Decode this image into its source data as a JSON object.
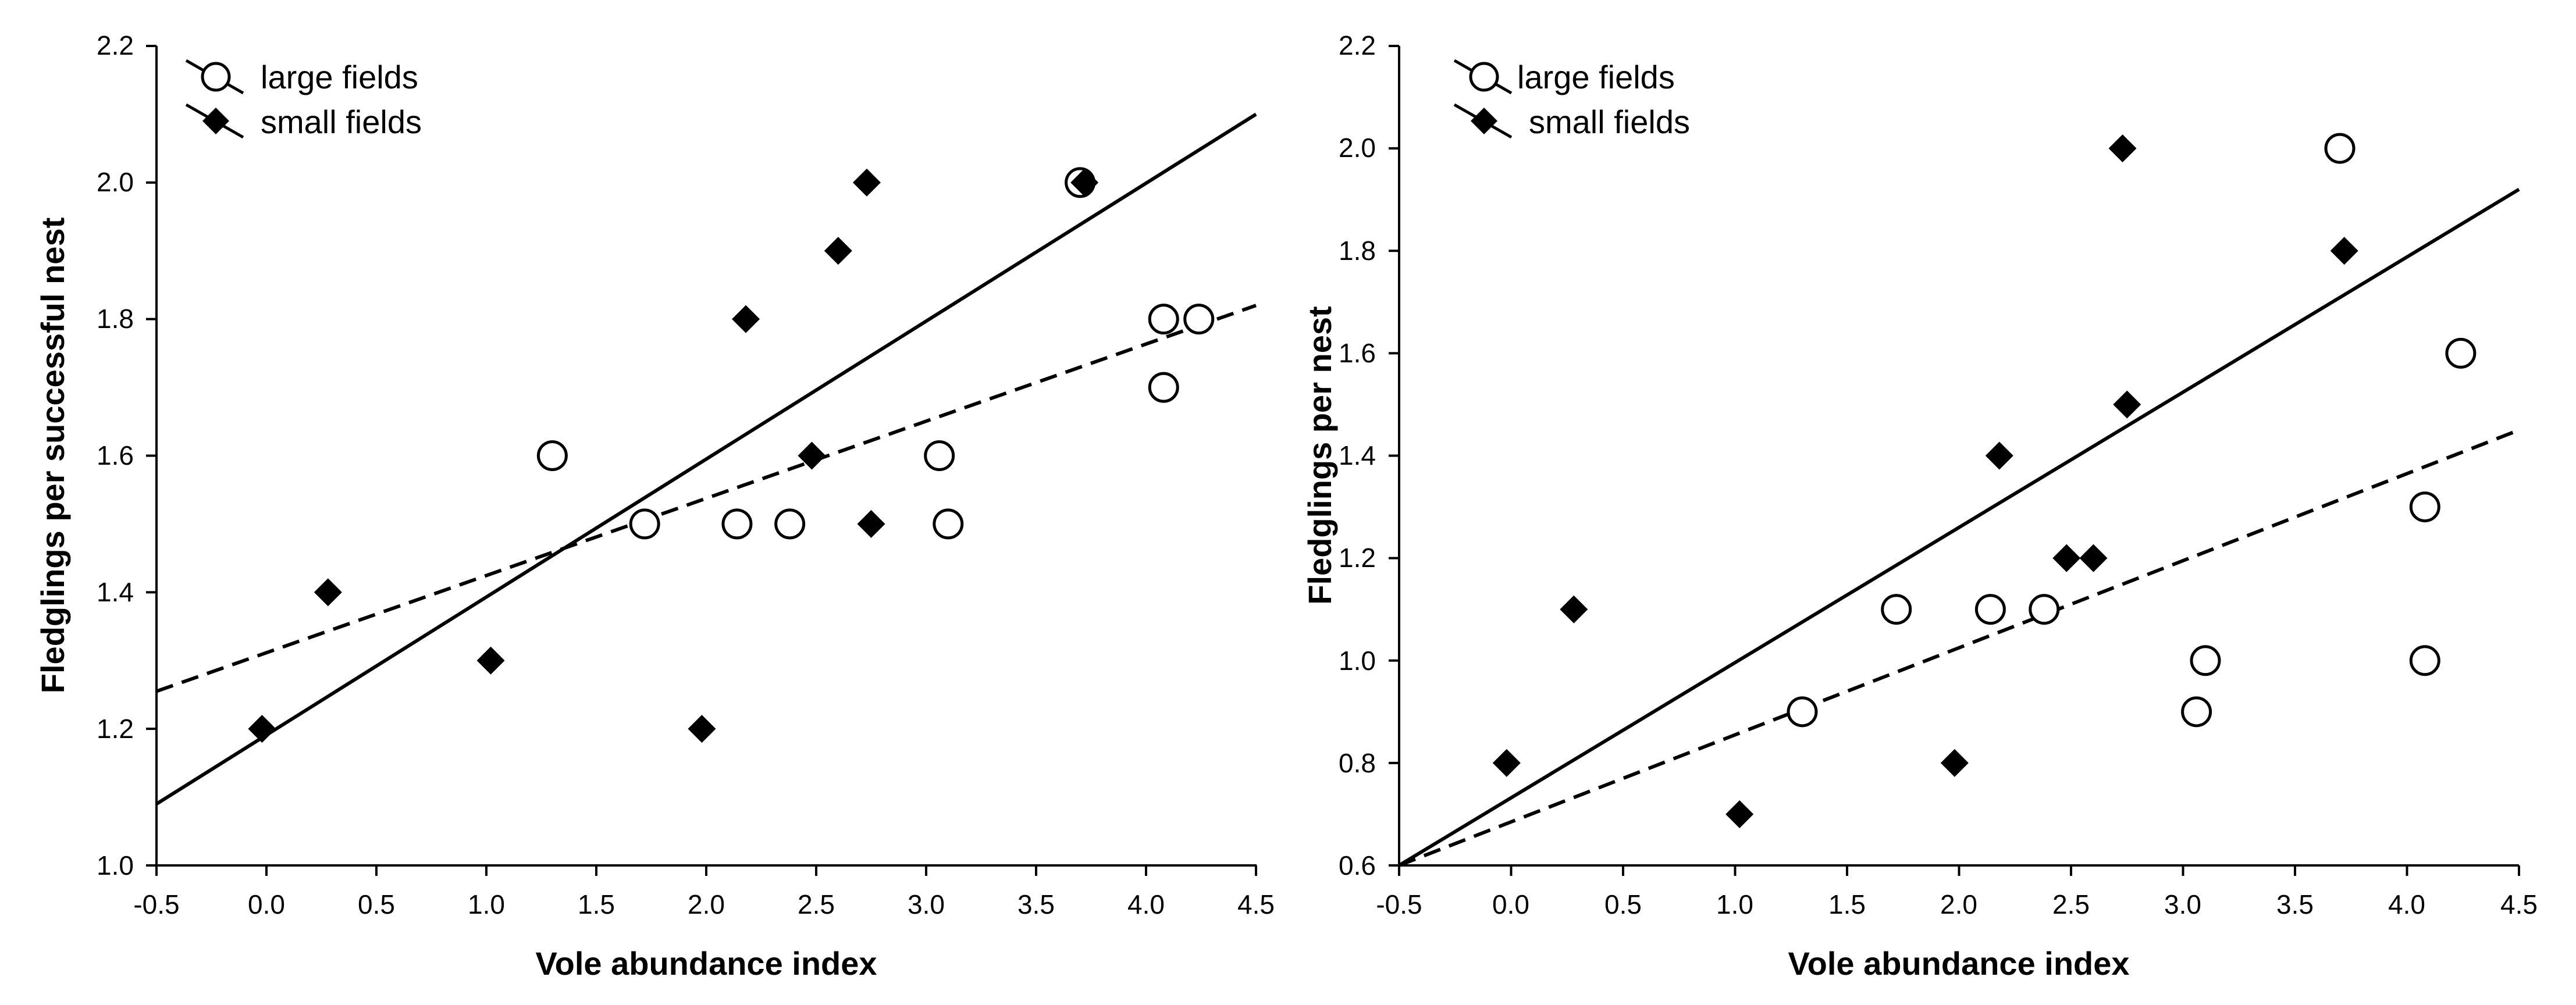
{
  "chart_data": [
    {
      "type": "scatter",
      "title": "",
      "xlabel": "Vole abundance index",
      "ylabel": "Fledglings per successful nest",
      "xlim": [
        -0.5,
        4.5
      ],
      "ylim": [
        1.0,
        2.2
      ],
      "xticks": [
        "-0.5",
        "0.0",
        "0.5",
        "1.0",
        "1.5",
        "2.0",
        "2.5",
        "3.0",
        "3.5",
        "4.0",
        "4.5"
      ],
      "yticks": [
        "1.0",
        "1.2",
        "1.4",
        "1.6",
        "1.8",
        "2.0",
        "2.2"
      ],
      "legend": {
        "position": "top-left",
        "entries": [
          "large fields",
          "small fields"
        ]
      },
      "series": [
        {
          "name": "large fields",
          "marker": "open-circle",
          "line": "dashed",
          "points": [
            [
              1.3,
              1.6
            ],
            [
              1.72,
              1.5
            ],
            [
              2.14,
              1.5
            ],
            [
              2.38,
              1.5
            ],
            [
              3.06,
              1.6
            ],
            [
              3.1,
              1.5
            ],
            [
              3.7,
              2.0
            ],
            [
              4.08,
              1.8
            ],
            [
              4.08,
              1.7
            ],
            [
              4.24,
              1.8
            ]
          ],
          "fit": [
            [
              -0.5,
              1.255
            ],
            [
              4.5,
              1.82
            ]
          ]
        },
        {
          "name": "small fields",
          "marker": "filled-diamond",
          "line": "solid",
          "points": [
            [
              -0.02,
              1.2
            ],
            [
              0.28,
              1.4
            ],
            [
              1.02,
              1.3
            ],
            [
              1.98,
              1.2
            ],
            [
              2.18,
              1.8
            ],
            [
              2.48,
              1.6
            ],
            [
              2.6,
              1.9
            ],
            [
              2.73,
              2.0
            ],
            [
              2.75,
              1.5
            ],
            [
              3.72,
              2.0
            ]
          ],
          "fit": [
            [
              -0.5,
              1.09
            ],
            [
              4.5,
              2.1
            ]
          ]
        }
      ]
    },
    {
      "type": "scatter",
      "title": "",
      "xlabel": "Vole abundance index",
      "ylabel": "Fledglings per nest",
      "xlim": [
        -0.5,
        4.5
      ],
      "ylim": [
        0.6,
        2.2
      ],
      "xticks": [
        "-0.5",
        "0.0",
        "0.5",
        "1.0",
        "1.5",
        "2.0",
        "2.5",
        "3.0",
        "3.5",
        "4.0",
        "4.5"
      ],
      "yticks": [
        "0.6",
        "0.8",
        "1.0",
        "1.2",
        "1.4",
        "1.6",
        "1.8",
        "2.0",
        "2.2"
      ],
      "legend": {
        "position": "top-left",
        "entries": [
          "large fields",
          "small fields"
        ]
      },
      "series": [
        {
          "name": "large fields",
          "marker": "open-circle",
          "line": "dashed",
          "points": [
            [
              1.3,
              0.9
            ],
            [
              1.72,
              1.1
            ],
            [
              2.14,
              1.1
            ],
            [
              2.38,
              1.1
            ],
            [
              3.06,
              0.9
            ],
            [
              3.1,
              1.0
            ],
            [
              3.7,
              2.0
            ],
            [
              4.08,
              1.3
            ],
            [
              4.08,
              1.0
            ],
            [
              4.24,
              1.6
            ]
          ],
          "fit": [
            [
              -0.5,
              0.6
            ],
            [
              4.5,
              1.45
            ]
          ]
        },
        {
          "name": "small fields",
          "marker": "filled-diamond",
          "line": "solid",
          "points": [
            [
              -0.02,
              0.8
            ],
            [
              0.28,
              1.1
            ],
            [
              1.02,
              0.7
            ],
            [
              1.98,
              0.8
            ],
            [
              2.18,
              1.4
            ],
            [
              2.48,
              1.2
            ],
            [
              2.6,
              1.2
            ],
            [
              2.73,
              2.0
            ],
            [
              2.75,
              1.5
            ],
            [
              3.72,
              1.8
            ]
          ],
          "fit": [
            [
              -0.5,
              0.6
            ],
            [
              4.5,
              1.92
            ]
          ]
        }
      ]
    }
  ]
}
